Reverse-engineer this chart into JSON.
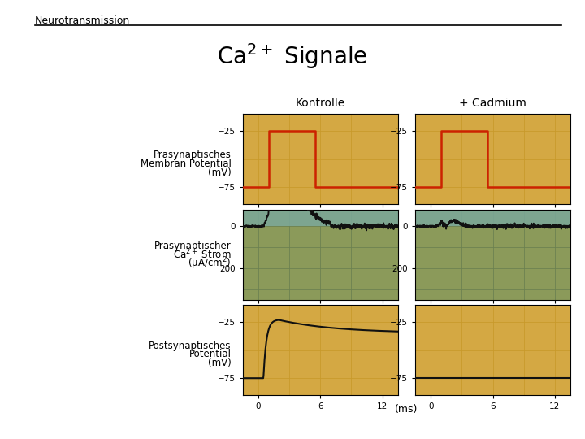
{
  "title": "Ca$^{2+}$ Signale",
  "header": "Neurotransmission",
  "col_labels": [
    "Kontrolle",
    "+ Cadmium"
  ],
  "row_labels_line1": [
    "Präsynaptisches",
    "Präsynaptischer",
    "Postsynaptisches"
  ],
  "row_labels_line2": [
    "Membran Potential",
    "Ca$^{2+}$ Strom",
    "Potential"
  ],
  "row_labels_line3": [
    "(mV)",
    "(μA/cm$^2$)",
    "(mV)"
  ],
  "xlabel": "(ms)",
  "xticks": [
    0,
    6,
    12
  ],
  "bg_orange": "#D4A843",
  "bg_green_top": "#7BA89A",
  "bg_green_bot": "#8B9A5A",
  "line_red": "#CC2200",
  "line_black": "#111111",
  "row0_yticks": [
    -75,
    -25
  ],
  "row0_ylim": [
    -90,
    -10
  ],
  "row1_yticks": [
    0,
    200
  ],
  "row1_ylim": [
    -80,
    350
  ],
  "row2_yticks": [
    -75,
    -25
  ],
  "row2_ylim": [
    -90,
    -10
  ],
  "xlim": [
    -1.5,
    13.5
  ]
}
